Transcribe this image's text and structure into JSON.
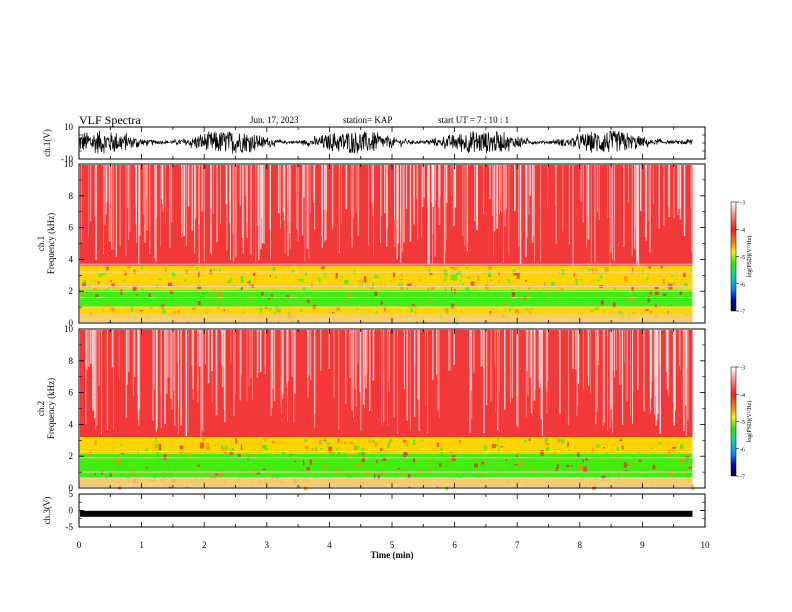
{
  "header": {
    "title": "VLF Spectra",
    "date": "Jun. 17, 2023",
    "station": "station= KAP",
    "start": "start UT =  7 : 10 : 1"
  },
  "chart_data": [
    {
      "id": "ch1-waveform",
      "type": "line",
      "ylabel": "ch.1(V)",
      "ylim": [
        -10,
        10
      ],
      "yticks": [
        "10",
        "-10"
      ],
      "xlim": [
        0,
        10
      ],
      "note": "dense noisy waveform roughly between -7 and +8 V over 0 to 9.8 min"
    },
    {
      "id": "ch1-spectrogram",
      "type": "heatmap",
      "ylabel": "ch.1\nFrequency (kHz)",
      "ylim": [
        0,
        10
      ],
      "yticks": [
        "10",
        "8",
        "6",
        "4",
        "2",
        "0"
      ],
      "xlim": [
        0,
        10
      ],
      "colorbar": {
        "label": "log(PSD)(V²/Hz)",
        "range": [
          -7,
          -3
        ],
        "ticks": [
          "-3",
          "-4",
          "-5",
          "-6",
          "-7"
        ]
      },
      "bands": [
        {
          "f_min": 0.2,
          "f_max": 3.6,
          "log_psd": -4.7,
          "label": "green-yellow enhanced band"
        },
        {
          "f_min": 3.6,
          "f_max": 10,
          "log_psd": -3.8,
          "label": "red background"
        }
      ]
    },
    {
      "id": "ch2-spectrogram",
      "type": "heatmap",
      "ylabel": "ch.2\nFrequency (kHz)",
      "ylim": [
        0,
        10
      ],
      "yticks": [
        "10",
        "8",
        "6",
        "4",
        "2",
        "0"
      ],
      "xlim": [
        0,
        10
      ],
      "colorbar": {
        "label": "log(PSD)(V²/Hz)",
        "range": [
          -7,
          -3
        ],
        "ticks": [
          "-3",
          "-4",
          "-5",
          "-6",
          "-7"
        ]
      },
      "bands": [
        {
          "f_min": 0.2,
          "f_max": 3.2,
          "log_psd": -5.0,
          "label": "green enhanced band"
        },
        {
          "f_min": 3.2,
          "f_max": 10,
          "log_psd": -3.8,
          "label": "red background"
        }
      ]
    },
    {
      "id": "ch3-waveform",
      "type": "line",
      "ylabel": "ch.3(V)",
      "ylim": [
        -5,
        5
      ],
      "yticks": [
        "5",
        "0",
        "-5"
      ],
      "xlim": [
        0,
        10
      ],
      "note": "near-constant signal around -1 V"
    }
  ],
  "xaxis": {
    "label": "Time (min)",
    "ticks": [
      "0",
      "1",
      "2",
      "3",
      "4",
      "5",
      "6",
      "7",
      "8",
      "9",
      "10"
    ],
    "data_end": 9.8
  },
  "colors": {
    "background": "#ffffff",
    "spectrogram_red": "#ee2222",
    "spectrogram_yellow": "#ffd400",
    "spectrogram_green": "#33ee11",
    "waveform": "#000000"
  }
}
